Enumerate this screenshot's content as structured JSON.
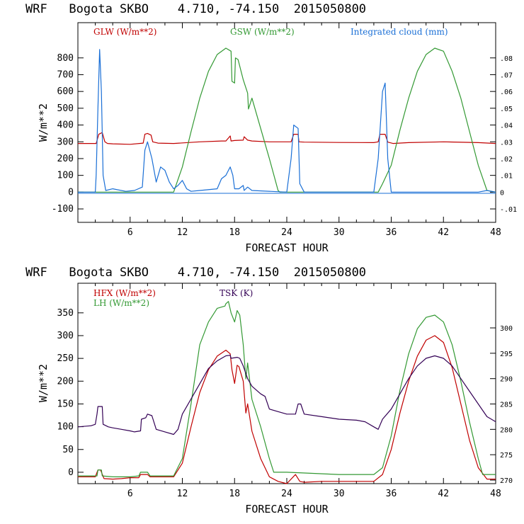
{
  "chart_data": [
    {
      "type": "line",
      "title": "WRF   Bogota SKBO    4.710, -74.150  2015050800",
      "xlabel": "FORECAST HOUR",
      "ylabel": "W/m**2",
      "xlim": [
        0,
        48
      ],
      "ylim": [
        -180,
        1010
      ],
      "xticks": [
        6,
        12,
        18,
        24,
        30,
        36,
        42,
        48
      ],
      "yticks": [
        -100,
        0,
        100,
        200,
        300,
        400,
        500,
        600,
        700,
        800
      ],
      "y2label": "Integrated cloud (mm)",
      "y2lim": [
        -0.018,
        0.101
      ],
      "y2ticks": [
        "-.01",
        "0",
        ".01",
        ".02",
        ".03",
        ".04",
        ".05",
        ".06",
        ".07",
        ".08"
      ],
      "y2tick_values": [
        -0.01,
        0,
        0.01,
        0.02,
        0.03,
        0.04,
        0.05,
        0.06,
        0.07,
        0.08
      ],
      "series": [
        {
          "name": "GLW (W/m**2)",
          "color": "#c00000",
          "axis": "left",
          "x": [
            0,
            2,
            2.1,
            2.4,
            2.8,
            3.1,
            3.4,
            4,
            6,
            7.5,
            7.7,
            8,
            8.4,
            8.6,
            9.2,
            11,
            14,
            16.5,
            17,
            17.5,
            17.6,
            18,
            19,
            19.1,
            19.5,
            20,
            22,
            24.5,
            24.8,
            25.3,
            25.4,
            26,
            30,
            34,
            34.5,
            34.7,
            35.3,
            35.6,
            36.2,
            38,
            42,
            46,
            48
          ],
          "values": [
            290,
            290,
            290,
            345,
            355,
            300,
            290,
            288,
            285,
            292,
            345,
            350,
            340,
            300,
            292,
            290,
            300,
            305,
            305,
            335,
            305,
            308,
            310,
            330,
            310,
            305,
            300,
            300,
            345,
            345,
            300,
            298,
            296,
            295,
            300,
            345,
            345,
            298,
            290,
            295,
            300,
            295,
            290
          ]
        },
        {
          "name": "GSW (W/m**2)",
          "color": "#339933",
          "axis": "left",
          "x": [
            0,
            11,
            12,
            13,
            14,
            15,
            16,
            17,
            17.6,
            17.7,
            18,
            18.1,
            18.4,
            19,
            19.5,
            19.6,
            20,
            21,
            22,
            23,
            23.2,
            25,
            34.5,
            35,
            36,
            37,
            38,
            39,
            40,
            41,
            42,
            43,
            44,
            45,
            46,
            47,
            48
          ],
          "values": [
            0,
            0,
            150,
            360,
            560,
            720,
            820,
            858,
            840,
            660,
            650,
            800,
            790,
            670,
            590,
            495,
            560,
            380,
            200,
            10,
            0,
            0,
            0,
            50,
            160,
            370,
            560,
            720,
            820,
            858,
            840,
            720,
            560,
            360,
            160,
            10,
            0
          ]
        }
      ],
      "series_right": [
        {
          "name": "Integrated cloud (mm)",
          "color": "#1a6fd6",
          "axis": "right",
          "x": [
            0,
            2,
            2.1,
            2.3,
            2.5,
            2.7,
            2.9,
            3.2,
            4,
            5.5,
            6.5,
            7.4,
            7.7,
            8,
            8.5,
            9,
            9.5,
            10,
            10.5,
            11,
            11.5,
            12,
            12.5,
            13,
            14,
            16,
            16.5,
            17,
            17.2,
            17.5,
            17.8,
            18,
            18.5,
            19,
            19.1,
            19.5,
            20,
            24,
            24.5,
            24.8,
            25.3,
            25.5,
            26,
            34,
            34.5,
            35,
            35.3,
            35.6,
            36,
            46,
            47,
            48
          ],
          "values": [
            0,
            0,
            0.01,
            0.05,
            0.085,
            0.06,
            0.01,
            0.001,
            0.002,
            0.0005,
            0.001,
            0.003,
            0.025,
            0.03,
            0.02,
            0.006,
            0.015,
            0.013,
            0.006,
            0.002,
            0.004,
            0.007,
            0.002,
            0.0005,
            0.001,
            0.002,
            0.008,
            0.01,
            0.012,
            0.015,
            0.01,
            0.002,
            0.002,
            0.004,
            0.001,
            0.003,
            0.001,
            0,
            0.02,
            0.04,
            0.038,
            0.005,
            0,
            0,
            0.02,
            0.06,
            0.065,
            0.02,
            0,
            0,
            0.001,
            0
          ]
        }
      ],
      "legend": [
        "GLW (W/m**2)",
        "GSW (W/m**2)",
        "Integrated cloud (mm)"
      ]
    },
    {
      "type": "line",
      "title": "WRF   Bogota SKBO    4.710, -74.150  2015050800",
      "xlabel": "FORECAST HOUR",
      "ylabel": "W/m**2",
      "xlim": [
        0,
        48
      ],
      "ylim": [
        -25,
        415
      ],
      "xticks": [
        6,
        12,
        18,
        24,
        30,
        36,
        42,
        48
      ],
      "yticks": [
        0,
        50,
        100,
        150,
        200,
        250,
        300,
        350
      ],
      "y2label": "TSK (K)",
      "y2lim": [
        269.3,
        308.8
      ],
      "y2ticks": [
        "270",
        "275",
        "280",
        "285",
        "290",
        "295",
        "300"
      ],
      "y2tick_values": [
        270,
        275,
        280,
        285,
        290,
        295,
        300
      ],
      "series": [
        {
          "name": "HFX (W/m**2)",
          "color": "#c00000",
          "axis": "left",
          "x": [
            0,
            2,
            2.3,
            2.6,
            3,
            4,
            5,
            6,
            7,
            7.2,
            8,
            8.3,
            9,
            10,
            11,
            12,
            13,
            14,
            15,
            16,
            17,
            17.5,
            17.7,
            18,
            18.3,
            18.5,
            19,
            19.3,
            19.5,
            20,
            21,
            22,
            23,
            24,
            25,
            25.5,
            26,
            28,
            30,
            32,
            34,
            35,
            36,
            37,
            38,
            39,
            40,
            41,
            42,
            43,
            44,
            45,
            46,
            47,
            48
          ],
          "values": [
            -10,
            -10,
            5,
            5,
            -14,
            -15,
            -14,
            -12,
            -12,
            -5,
            -5,
            -10,
            -10,
            -10,
            -10,
            20,
            100,
            175,
            225,
            255,
            268,
            260,
            225,
            195,
            235,
            232,
            200,
            130,
            150,
            90,
            30,
            -10,
            -20,
            -25,
            -5,
            -20,
            -22,
            -20,
            -20,
            -20,
            -20,
            -5,
            50,
            130,
            200,
            255,
            290,
            300,
            285,
            230,
            150,
            70,
            10,
            -15,
            -15
          ]
        },
        {
          "name": "LH (W/m**2)",
          "color": "#339933",
          "axis": "left",
          "x": [
            0,
            2.2,
            2.3,
            2.7,
            2.8,
            4,
            6,
            7,
            7.2,
            8,
            8.3,
            9,
            10,
            11,
            12,
            13,
            14,
            15,
            16,
            16.9,
            17,
            17.3,
            17.6,
            18,
            18.3,
            18.6,
            19,
            19.3,
            19.5,
            20,
            21,
            22,
            22.5,
            24,
            30,
            34,
            35,
            36,
            37,
            38,
            39,
            40,
            41,
            42,
            43,
            44,
            45,
            46,
            46.5,
            48
          ],
          "values": [
            -8,
            -8,
            5,
            5,
            -8,
            -10,
            -10,
            -8,
            0,
            0,
            -8,
            -8,
            -8,
            -8,
            30,
            150,
            280,
            330,
            360,
            365,
            370,
            375,
            350,
            330,
            355,
            345,
            280,
            205,
            240,
            160,
            100,
            30,
            0,
            0,
            -5,
            -5,
            10,
            80,
            180,
            260,
            315,
            340,
            345,
            330,
            280,
            200,
            110,
            30,
            -5,
            -5
          ]
        },
        {
          "name": "TSK (K)",
          "color": "#330055",
          "axis": "right",
          "x": [
            0,
            1.5,
            2,
            2.2,
            2.3,
            2.8,
            2.9,
            3.5,
            4,
            5,
            6,
            6.5,
            7.2,
            7.3,
            7.8,
            8,
            8.5,
            9,
            10,
            11,
            11.5,
            12,
            13,
            14,
            15,
            16,
            17,
            17.5,
            17.6,
            18.3,
            18.6,
            19,
            19.5,
            20,
            21,
            21.5,
            22,
            23,
            24,
            25,
            25.3,
            25.6,
            26,
            28,
            30,
            32,
            33,
            34,
            34.5,
            35,
            36,
            37,
            38,
            39,
            40,
            41,
            42,
            43,
            44,
            45,
            46,
            47,
            47.5,
            48
          ],
          "values": [
            280.5,
            280.7,
            281,
            283,
            284.5,
            284.5,
            281,
            280.5,
            280.3,
            280,
            279.7,
            279.5,
            279.7,
            282,
            282.3,
            283,
            282.7,
            280,
            279.5,
            279,
            280,
            283,
            286,
            289,
            292,
            293.5,
            294.5,
            294.6,
            294,
            294.2,
            294,
            292.5,
            290,
            288.5,
            287,
            286.5,
            284,
            283.5,
            283,
            283,
            285,
            285,
            283,
            282.5,
            282,
            281.8,
            281.5,
            280.5,
            280,
            282,
            284,
            287,
            290,
            292.5,
            294,
            294.5,
            294,
            292.5,
            290,
            287.5,
            285,
            282.5,
            282,
            281.5
          ]
        }
      ],
      "legend": [
        "HFX (W/m**2)",
        "LH (W/m**2)",
        "TSK (K)"
      ]
    }
  ]
}
